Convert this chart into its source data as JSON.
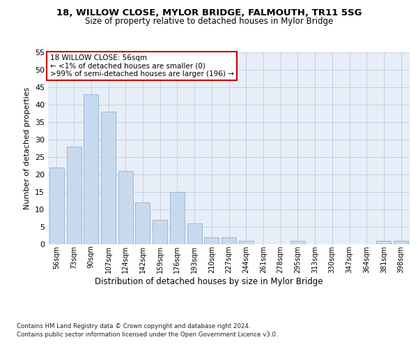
{
  "title": "18, WILLOW CLOSE, MYLOR BRIDGE, FALMOUTH, TR11 5SG",
  "subtitle": "Size of property relative to detached houses in Mylor Bridge",
  "xlabel": "Distribution of detached houses by size in Mylor Bridge",
  "ylabel": "Number of detached properties",
  "bar_color": "#c9d9ed",
  "bar_edge_color": "#8eb4d4",
  "categories": [
    "56sqm",
    "73sqm",
    "90sqm",
    "107sqm",
    "124sqm",
    "142sqm",
    "159sqm",
    "176sqm",
    "193sqm",
    "210sqm",
    "227sqm",
    "244sqm",
    "261sqm",
    "278sqm",
    "295sqm",
    "313sqm",
    "330sqm",
    "347sqm",
    "364sqm",
    "381sqm",
    "398sqm"
  ],
  "values": [
    22,
    28,
    43,
    38,
    21,
    12,
    7,
    15,
    6,
    2,
    2,
    1,
    0,
    0,
    1,
    0,
    0,
    0,
    0,
    1,
    1
  ],
  "annotation_title": "18 WILLOW CLOSE: 56sqm",
  "annotation_line1": "← <1% of detached houses are smaller (0)",
  "annotation_line2": ">99% of semi-detached houses are larger (196) →",
  "annotation_box_color": "#ffffff",
  "annotation_box_edge": "#cc0000",
  "footnote1": "Contains HM Land Registry data © Crown copyright and database right 2024.",
  "footnote2": "Contains public sector information licensed under the Open Government Licence v3.0.",
  "ylim": [
    0,
    55
  ],
  "yticks": [
    0,
    5,
    10,
    15,
    20,
    25,
    30,
    35,
    40,
    45,
    50,
    55
  ],
  "bg_color": "#e8eef7",
  "fig_bg_color": "#ffffff"
}
